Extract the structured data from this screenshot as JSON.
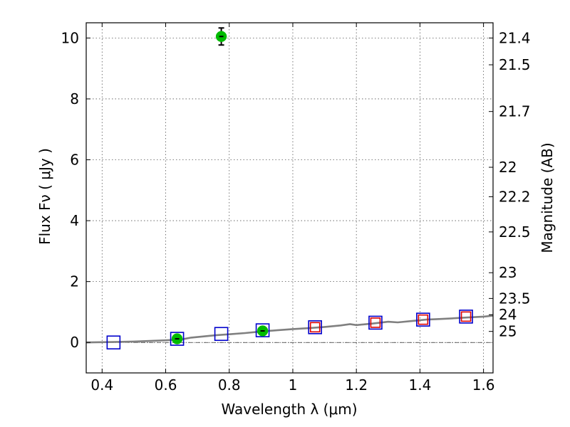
{
  "chart_data": {
    "type": "scatter",
    "xlabel": "Wavelength  λ (μm)",
    "ylabel": "Flux  Fν  ( μJy )",
    "ylabel_right": "Magnitude (AB)",
    "xlim": [
      0.35,
      1.63
    ],
    "ylim": [
      -1.0,
      10.5
    ],
    "x_ticks": [
      0.4,
      0.6,
      0.8,
      1.0,
      1.2,
      1.4,
      1.6
    ],
    "x_tick_labels": [
      "0.4",
      "0.6",
      "0.8",
      "1",
      "1.2",
      "1.4",
      "1.6"
    ],
    "y_ticks": [
      0,
      2,
      4,
      6,
      8,
      10
    ],
    "y_tick_labels": [
      "0",
      "2",
      "4",
      "6",
      "8",
      "10"
    ],
    "right_ticks": [
      {
        "label": "21.4",
        "mag": 21.4
      },
      {
        "label": "21.5",
        "mag": 21.5
      },
      {
        "label": "21.7",
        "mag": 21.7
      },
      {
        "label": "22",
        "mag": 22.0
      },
      {
        "label": "22.2",
        "mag": 22.2
      },
      {
        "label": "22.5",
        "mag": 22.5
      },
      {
        "label": "23",
        "mag": 23.0
      },
      {
        "label": "23.5",
        "mag": 23.5
      },
      {
        "label": "24",
        "mag": 24.0
      },
      {
        "label": "25",
        "mag": 25.0
      }
    ],
    "grid": true,
    "zero_line": true,
    "series": [
      {
        "marker": "line",
        "color": "#808080",
        "x": [
          0.35,
          0.4,
          0.45,
          0.5,
          0.55,
          0.6,
          0.65,
          0.68,
          0.72,
          0.76,
          0.8,
          0.85,
          0.9,
          0.95,
          1.0,
          1.05,
          1.1,
          1.15,
          1.18,
          1.2,
          1.25,
          1.3,
          1.33,
          1.38,
          1.42,
          1.46,
          1.5,
          1.55,
          1.6,
          1.63
        ],
        "y": [
          0.0,
          0.01,
          0.02,
          0.03,
          0.05,
          0.07,
          0.1,
          0.16,
          0.2,
          0.24,
          0.27,
          0.31,
          0.36,
          0.4,
          0.44,
          0.47,
          0.51,
          0.56,
          0.6,
          0.57,
          0.62,
          0.68,
          0.66,
          0.71,
          0.75,
          0.77,
          0.79,
          0.82,
          0.85,
          0.88
        ]
      },
      {
        "marker": "open-square",
        "color": "#0000cc",
        "x": [
          0.436,
          0.636,
          0.775,
          0.905,
          1.07,
          1.26,
          1.41,
          1.545
        ],
        "y": [
          0.0,
          0.12,
          0.28,
          0.4,
          0.5,
          0.65,
          0.75,
          0.85
        ]
      },
      {
        "marker": "open-square",
        "color": "#dd0000",
        "x": [
          1.07,
          1.26,
          1.41,
          1.545
        ],
        "y": [
          0.5,
          0.65,
          0.75,
          0.85
        ]
      },
      {
        "marker": "filled-circle",
        "color": "#00bb00",
        "x": [
          0.636,
          0.775,
          0.905
        ],
        "y": [
          0.12,
          10.05,
          0.38
        ],
        "yerr": [
          0.06,
          0.28,
          0.06
        ]
      }
    ]
  }
}
